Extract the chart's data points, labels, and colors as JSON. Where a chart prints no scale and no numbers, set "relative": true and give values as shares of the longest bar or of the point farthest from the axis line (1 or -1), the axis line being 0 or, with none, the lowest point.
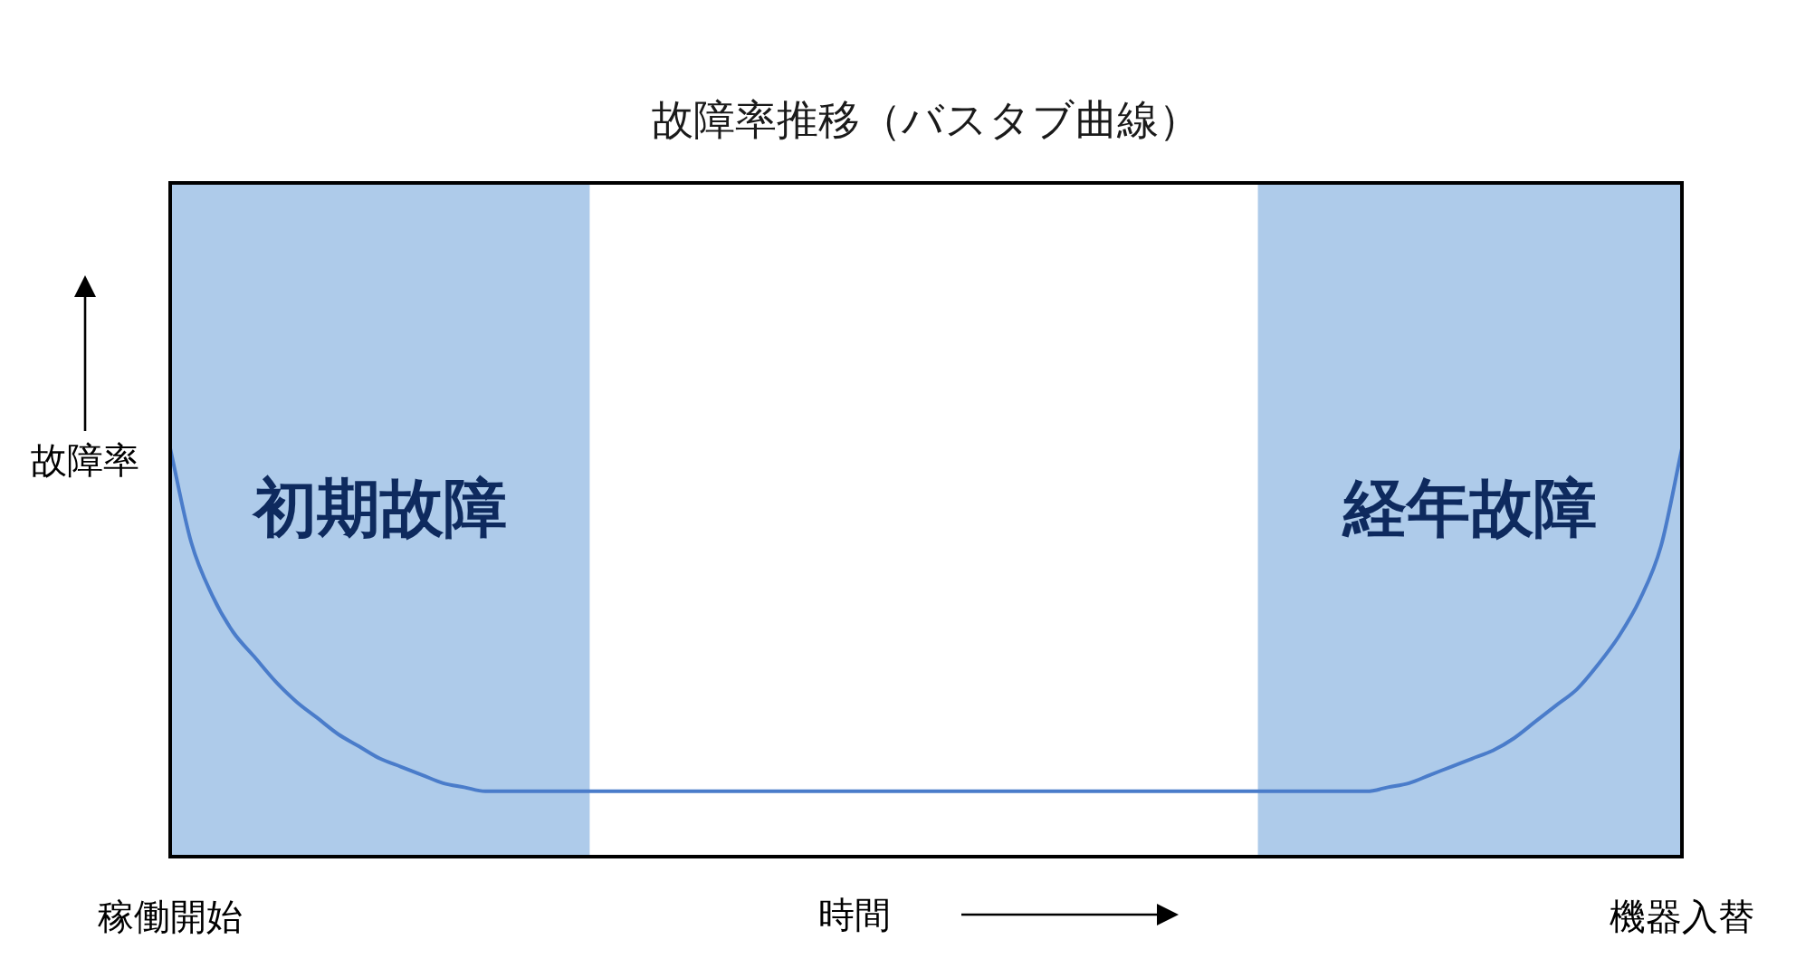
{
  "chart_data": {
    "type": "line",
    "title": "故障率推移（バスタブ曲線）",
    "xlabel": "時間",
    "ylabel": "故障率",
    "relative": true,
    "categories": [
      "稼働開始",
      null,
      null,
      null,
      null,
      null,
      null,
      null,
      null,
      null,
      null,
      null,
      null,
      null,
      null,
      null,
      null,
      null,
      null,
      null,
      null,
      null,
      null,
      null,
      null,
      null,
      null,
      null,
      null,
      null,
      null,
      null,
      null,
      null,
      null,
      null,
      null,
      null,
      null,
      null,
      null,
      null,
      null,
      null,
      null,
      null,
      null,
      null,
      null,
      null,
      null,
      null,
      null,
      null,
      null,
      null,
      null,
      null,
      null,
      null,
      null,
      null,
      null,
      null,
      null,
      null,
      null,
      null,
      null,
      null,
      null,
      null,
      "機器入替"
    ],
    "values": [
      1.0,
      0.77,
      0.64,
      0.55,
      0.49,
      0.43,
      0.38,
      0.34,
      0.3,
      0.27,
      0.24,
      0.22,
      0.2,
      0.18,
      0.17,
      0.16,
      0.16,
      0.16,
      0.16,
      0.16,
      0.16,
      0.16,
      0.16,
      0.16,
      0.16,
      0.16,
      0.16,
      0.16,
      0.16,
      0.16,
      0.16,
      0.16,
      0.16,
      0.16,
      0.16,
      0.16,
      0.16,
      0.16,
      0.16,
      0.16,
      0.16,
      0.16,
      0.16,
      0.16,
      0.16,
      0.16,
      0.16,
      0.16,
      0.16,
      0.16,
      0.16,
      0.16,
      0.16,
      0.16,
      0.16,
      0.16,
      0.16,
      0.16,
      0.17,
      0.18,
      0.2,
      0.22,
      0.24,
      0.26,
      0.29,
      0.33,
      0.37,
      0.41,
      0.47,
      0.54,
      0.63,
      0.76,
      1.0
    ],
    "color": "#4a7cca",
    "marker": "none",
    "line_style": "solid",
    "annotations": [
      "初期故障",
      "経年故障"
    ]
  }
}
